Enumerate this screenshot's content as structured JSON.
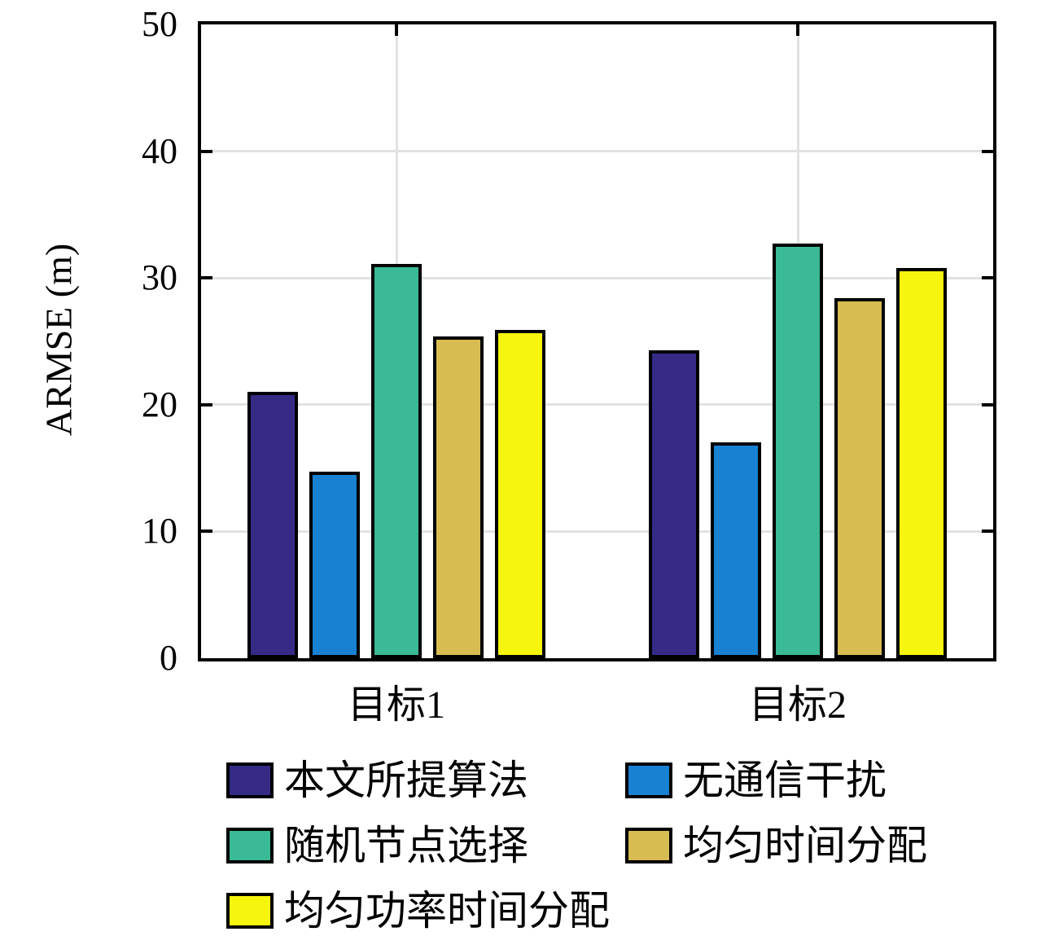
{
  "chart_data": {
    "type": "bar",
    "title": "",
    "xlabel": "",
    "ylabel": "ARMSE (m)",
    "categories": [
      "目标1",
      "目标2"
    ],
    "series": [
      {
        "name": "本文所提算法",
        "color": "#352B87",
        "values": [
          21.0,
          24.3
        ]
      },
      {
        "name": "无通信干扰",
        "color": "#1981D2",
        "values": [
          14.7,
          17.0
        ]
      },
      {
        "name": "随机节点选择",
        "color": "#3ABA96",
        "values": [
          31.1,
          32.7
        ]
      },
      {
        "name": "均匀时间分配",
        "color": "#D7BC52",
        "values": [
          25.4,
          28.4
        ]
      },
      {
        "name": "均匀功率时间分配",
        "color": "#F5F50D",
        "values": [
          25.9,
          30.8
        ]
      }
    ],
    "ylim": [
      0,
      50
    ],
    "yticks": [
      0,
      10,
      20,
      30,
      40,
      50
    ],
    "grid": true,
    "legend_position": "below-two-columns",
    "colors": {
      "axis": "#000000",
      "gridline": "#E2E2E2",
      "background": "#FFFFFF"
    }
  }
}
